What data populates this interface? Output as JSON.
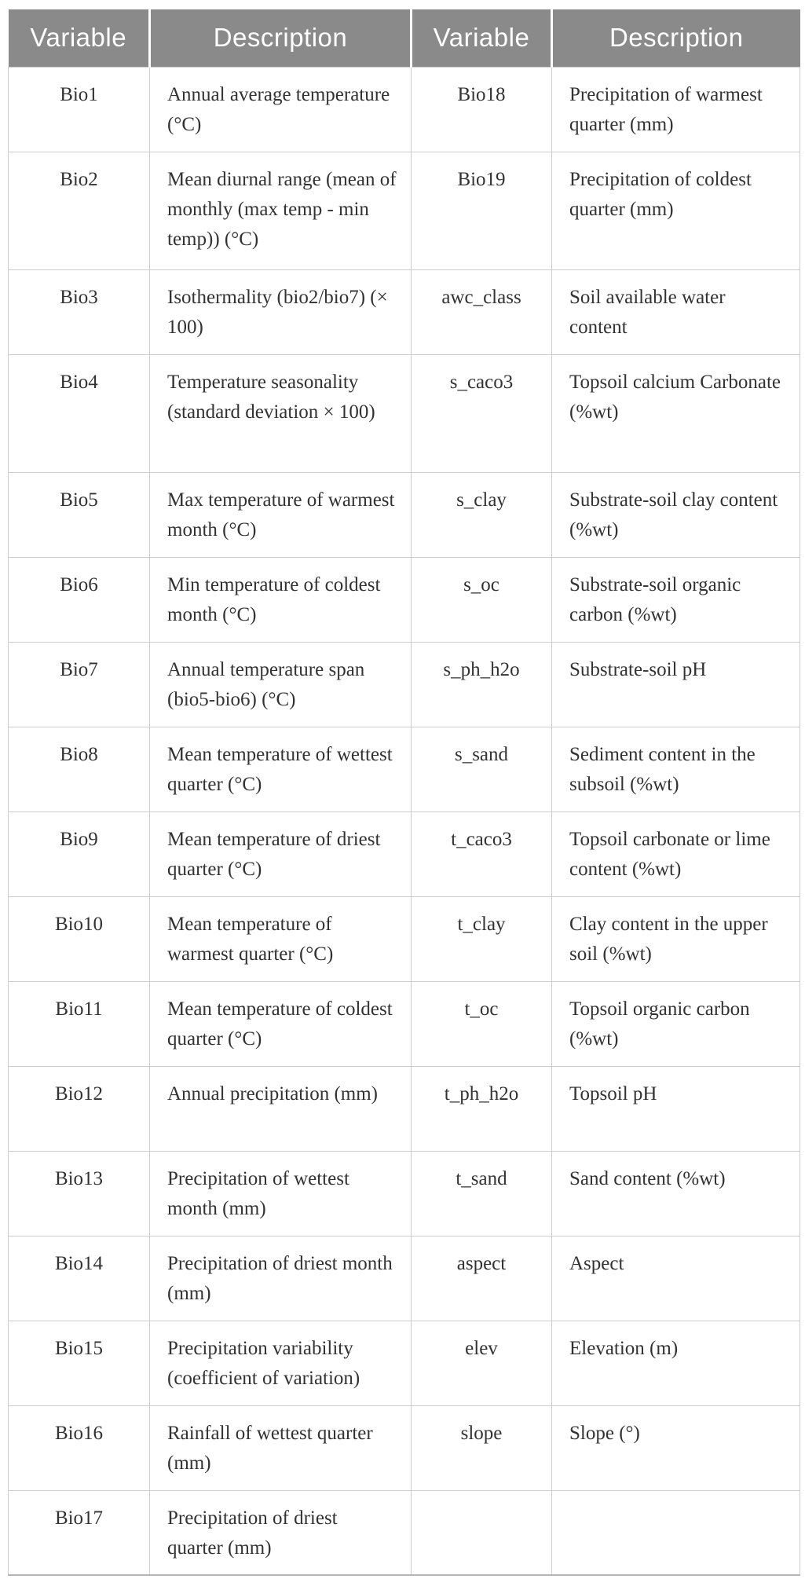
{
  "style": {
    "header_bg": "#8a8a8a",
    "header_text": "#ffffff",
    "body_text": "#323232",
    "grid_border": "#cccccc",
    "bottom_border": "#b5b5b5"
  },
  "table": {
    "headers": [
      "Variable",
      "Description",
      "Variable",
      "Description"
    ],
    "rows": [
      {
        "v1": "Bio1",
        "d1": "Annual average temperature (°C)",
        "v2": "Bio18",
        "d2": "Precipitation of warmest quarter (mm)"
      },
      {
        "v1": "Bio2",
        "d1": "Mean diurnal range (mean of monthly (max temp - min temp)) (°C)",
        "v2": "Bio19",
        "d2": "Precipitation of coldest quarter (mm)"
      },
      {
        "v1": "Bio3",
        "d1": "Isothermality (bio2/bio7) (× 100)",
        "v2": "awc_class",
        "d2": "Soil available water content"
      },
      {
        "v1": "Bio4",
        "d1": "Temperature seasonality (standard deviation × 100)",
        "v2": "s_caco3",
        "d2": "Topsoil calcium Carbonate (%wt)"
      },
      {
        "v1": "Bio5",
        "d1": "Max temperature of warmest month (°C)",
        "v2": "s_clay",
        "d2": "Substrate-soil clay content (%wt)"
      },
      {
        "v1": "Bio6",
        "d1": "Min temperature of coldest month (°C)",
        "v2": "s_oc",
        "d2": "Substrate-soil organic carbon (%wt)"
      },
      {
        "v1": "Bio7",
        "d1": "Annual temperature span (bio5-bio6) (°C)",
        "v2": "s_ph_h2o",
        "d2": "Substrate-soil pH"
      },
      {
        "v1": "Bio8",
        "d1": "Mean temperature of wettest quarter (°C)",
        "v2": "s_sand",
        "d2": "Sediment content in the subsoil (%wt)"
      },
      {
        "v1": "Bio9",
        "d1": "Mean temperature of driest quarter (°C)",
        "v2": "t_caco3",
        "d2": "Topsoil carbonate or lime content (%wt)"
      },
      {
        "v1": "Bio10",
        "d1": "Mean temperature of warmest quarter (°C)",
        "v2": "t_clay",
        "d2": "Clay content in the upper soil (%wt)"
      },
      {
        "v1": "Bio11",
        "d1": "Mean temperature of coldest quarter (°C)",
        "v2": "t_oc",
        "d2": "Topsoil organic carbon (%wt)"
      },
      {
        "v1": "Bio12",
        "d1": "Annual precipitation (mm)",
        "v2": "t_ph_h2o",
        "d2": "Topsoil pH"
      },
      {
        "v1": "Bio13",
        "d1": "Precipitation of wettest month (mm)",
        "v2": "t_sand",
        "d2": "Sand content (%wt)"
      },
      {
        "v1": "Bio14",
        "d1": "Precipitation of driest month (mm)",
        "v2": "aspect",
        "d2": "Aspect"
      },
      {
        "v1": "Bio15",
        "d1": "Precipitation variability (coefficient of variation)",
        "v2": "elev",
        "d2": "Elevation (m)"
      },
      {
        "v1": "Bio16",
        "d1": "Rainfall of wettest quarter (mm)",
        "v2": "slope",
        "d2": "Slope (°)"
      },
      {
        "v1": "Bio17",
        "d1": "Precipitation of driest quarter (mm)",
        "v2": "",
        "d2": ""
      }
    ]
  }
}
